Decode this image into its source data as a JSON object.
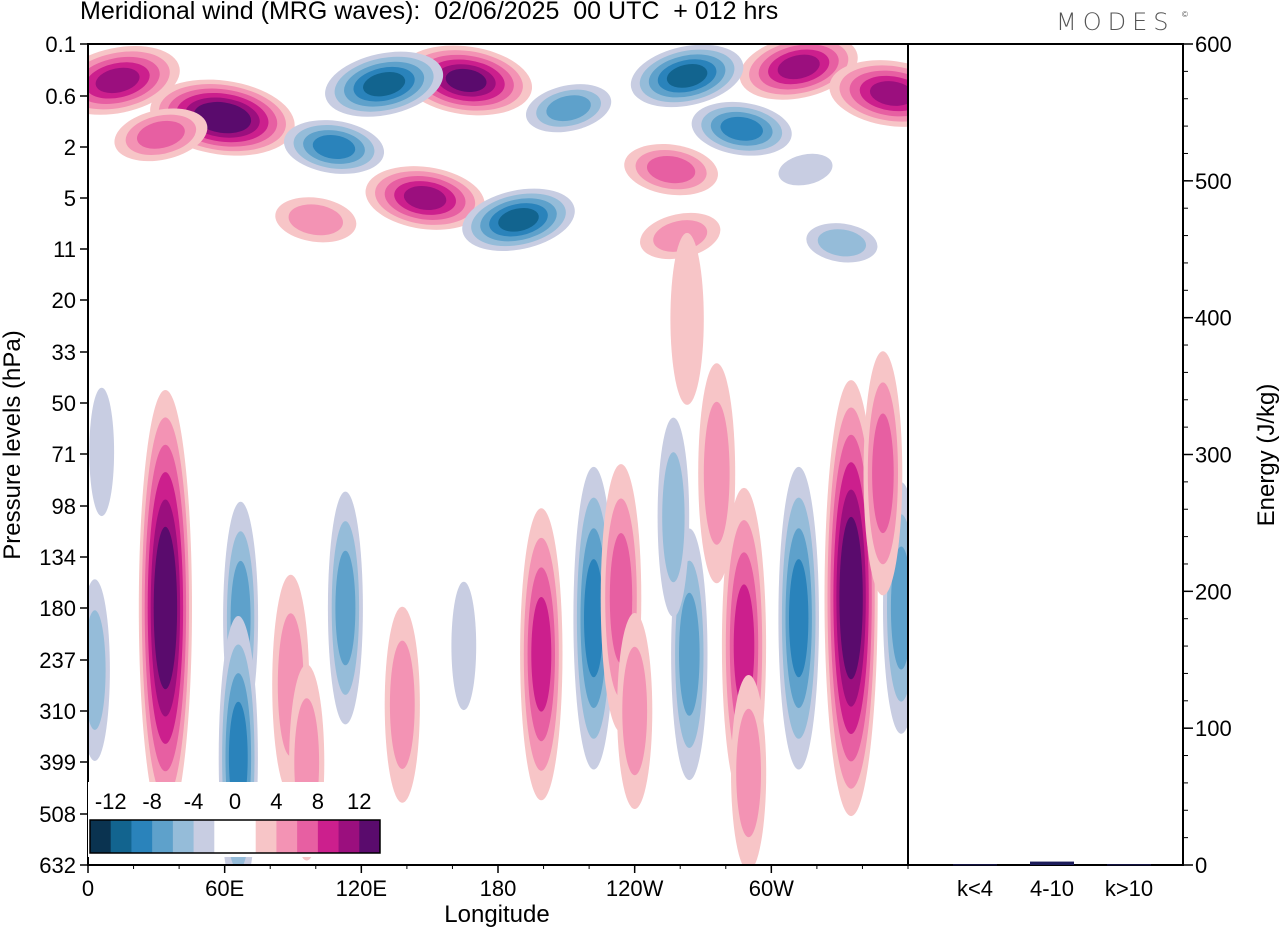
{
  "title": "Meridional wind (MRG waves):  02/06/2025  00 UTC  + 012 hrs",
  "brand": "MODES",
  "brand_mark": "©",
  "chart_data": [
    {
      "type": "heatmap",
      "title": "Meridional wind (MRG waves):  02/06/2025  00 UTC  + 012 hrs",
      "xlabel": "Longitude",
      "ylabel": "Pressure levels (hPa)",
      "x_ticks": [
        "0",
        "60E",
        "120E",
        "180",
        "120W",
        "60W"
      ],
      "x_tick_degrees": [
        0,
        60,
        120,
        180,
        240,
        300
      ],
      "xlim": [
        0,
        360
      ],
      "y_ticks": [
        "0.1",
        "0.6",
        "2",
        "5",
        "11",
        "20",
        "33",
        "50",
        "71",
        "98",
        "134",
        "180",
        "237",
        "310",
        "399",
        "508",
        "632"
      ],
      "color_levels": [
        -14,
        -12,
        -10,
        -8,
        -6,
        -4,
        -2,
        0,
        2,
        4,
        6,
        8,
        10,
        12,
        14
      ],
      "colorbar_labels": [
        "-12",
        "-8",
        "-4",
        "0",
        "4",
        "8",
        "12"
      ],
      "colors": [
        "#0a3350",
        "#12648f",
        "#2a83bb",
        "#5ea1cb",
        "#95bcd9",
        "#c8cde2",
        "#ffffff",
        "#ffffff",
        "#f7c5c7",
        "#f393b4",
        "#e75fa2",
        "#cc1f8d",
        "#9b0f7e",
        "#5a0b6d"
      ],
      "features": [
        {
          "lon": 59,
          "p": 1.0,
          "value": 14
        },
        {
          "lon": 13,
          "p": 0.35,
          "value": 11
        },
        {
          "lon": 166,
          "p": 0.35,
          "value": 12
        },
        {
          "lon": 312,
          "p": 0.22,
          "value": 10
        },
        {
          "lon": 353,
          "p": 0.55,
          "value": 11
        },
        {
          "lon": 130,
          "p": 0.4,
          "value": -13
        },
        {
          "lon": 108,
          "p": 2.0,
          "value": -10
        },
        {
          "lon": 263,
          "p": 0.3,
          "value": -12
        },
        {
          "lon": 287,
          "p": 1.3,
          "value": -10
        },
        {
          "lon": 211,
          "p": 0.8,
          "value": -8
        },
        {
          "lon": 148,
          "p": 5.0,
          "value": 10
        },
        {
          "lon": 189,
          "p": 7.0,
          "value": -12
        },
        {
          "lon": 256,
          "p": 3.0,
          "value": 6
        },
        {
          "lon": 32,
          "p": 1.5,
          "value": 6
        },
        {
          "lon": 331,
          "p": 10.0,
          "value": -6
        },
        {
          "lon": 260,
          "p": 9.0,
          "value": 4
        },
        {
          "lon": 100,
          "p": 7.0,
          "value": 4
        },
        {
          "lon": 315,
          "p": 3.0,
          "value": -4
        },
        {
          "lon": 263,
          "p": 24.0,
          "value": 3
        },
        {
          "lon": 34,
          "p": 180.0,
          "value": 14
        },
        {
          "lon": 67,
          "p": 190.0,
          "value": -8
        },
        {
          "lon": 66,
          "p": 390.0,
          "value": -10
        },
        {
          "lon": 113,
          "p": 180.0,
          "value": -8
        },
        {
          "lon": 89,
          "p": 270.0,
          "value": 5
        },
        {
          "lon": 138,
          "p": 300.0,
          "value": 4
        },
        {
          "lon": 165,
          "p": 220.0,
          "value": -4
        },
        {
          "lon": 199,
          "p": 230.0,
          "value": 8
        },
        {
          "lon": 222,
          "p": 190.0,
          "value": -11
        },
        {
          "lon": 234,
          "p": 170.0,
          "value": 7
        },
        {
          "lon": 264,
          "p": 230.0,
          "value": -9
        },
        {
          "lon": 288,
          "p": 220.0,
          "value": 9
        },
        {
          "lon": 312,
          "p": 190.0,
          "value": -11
        },
        {
          "lon": 335,
          "p": 170.0,
          "value": 14
        },
        {
          "lon": 357,
          "p": 180.0,
          "value": -9
        },
        {
          "lon": 3,
          "p": 250.0,
          "value": -6
        },
        {
          "lon": 18,
          "p": 300.0,
          "value": -3
        },
        {
          "lon": 276,
          "p": 80.0,
          "value": 5
        },
        {
          "lon": 349,
          "p": 80.0,
          "value": 6
        },
        {
          "lon": 257,
          "p": 105.0,
          "value": -7
        },
        {
          "lon": 165,
          "p": 75.0,
          "value": -3
        },
        {
          "lon": 6,
          "p": 70.0,
          "value": -4
        },
        {
          "lon": 240,
          "p": 310.0,
          "value": 4
        },
        {
          "lon": 246,
          "p": 420.0,
          "value": -3
        },
        {
          "lon": 178,
          "p": 350.0,
          "value": -3
        },
        {
          "lon": 290,
          "p": 420.0,
          "value": 4
        },
        {
          "lon": 96,
          "p": 400.0,
          "value": 4
        }
      ]
    },
    {
      "type": "bar",
      "ylabel": "Energy (J/kg)",
      "categories": [
        "k<4",
        "4-10",
        "k>10"
      ],
      "values": [
        0.5,
        2.5,
        0.5
      ],
      "ylim": [
        0,
        600
      ],
      "y_ticks": [
        "0",
        "100",
        "200",
        "300",
        "400",
        "500",
        "600"
      ],
      "bar_color": "#1c1c5a"
    }
  ]
}
